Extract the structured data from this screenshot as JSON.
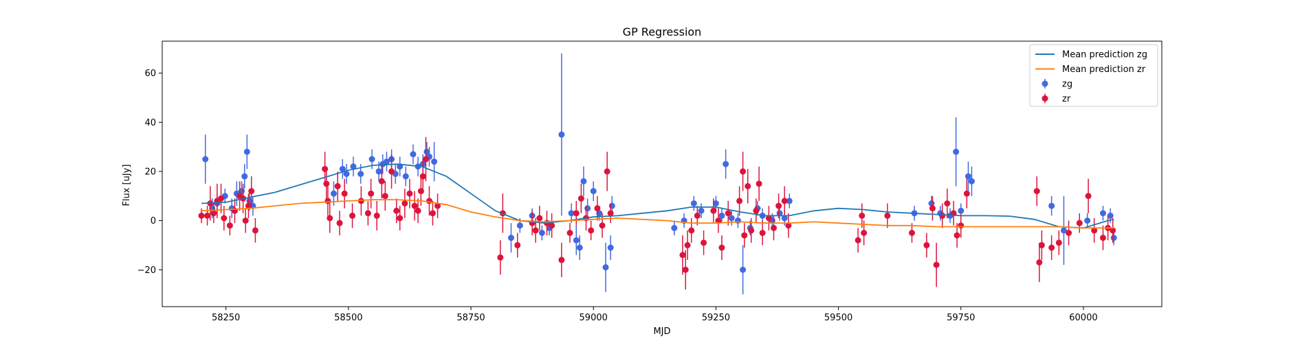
{
  "chart_data": {
    "type": "scatter",
    "title": "GP Regression",
    "xlabel": "MJD",
    "ylabel": "Flux [uJy]",
    "xlim": [
      58120,
      60160
    ],
    "ylim": [
      -35,
      73
    ],
    "xticks": [
      58250,
      58500,
      58750,
      59000,
      59250,
      59500,
      59750,
      60000
    ],
    "yticks": [
      -20,
      0,
      20,
      40,
      60
    ],
    "legend_position": "top-right",
    "series": [
      {
        "name": "zg",
        "kind": "errorbar",
        "color": "#4169e1",
        "points": [
          [
            58208,
            25,
            10
          ],
          [
            58222,
            5,
            4
          ],
          [
            58232,
            7,
            4
          ],
          [
            58248,
            10,
            3
          ],
          [
            58262,
            5,
            4
          ],
          [
            58272,
            11,
            5
          ],
          [
            58282,
            12,
            4
          ],
          [
            58288,
            18,
            5
          ],
          [
            58293,
            28,
            7
          ],
          [
            58298,
            8,
            4
          ],
          [
            58305,
            6,
            4
          ],
          [
            58470,
            11,
            5
          ],
          [
            58488,
            21,
            4
          ],
          [
            58496,
            19,
            4
          ],
          [
            58510,
            22,
            4
          ],
          [
            58525,
            19,
            4
          ],
          [
            58548,
            25,
            4
          ],
          [
            58562,
            20,
            4
          ],
          [
            58570,
            23,
            4
          ],
          [
            58578,
            24,
            4
          ],
          [
            58588,
            25,
            4
          ],
          [
            58596,
            19,
            4
          ],
          [
            58605,
            22,
            4
          ],
          [
            58617,
            18,
            4
          ],
          [
            58632,
            27,
            4
          ],
          [
            58642,
            22,
            4
          ],
          [
            58652,
            23,
            4
          ],
          [
            58660,
            28,
            4
          ],
          [
            58665,
            26,
            4
          ],
          [
            58675,
            24,
            8
          ],
          [
            58832,
            -7,
            6
          ],
          [
            58850,
            -2,
            3
          ],
          [
            58875,
            2,
            3
          ],
          [
            58895,
            -5,
            3
          ],
          [
            58910,
            -3,
            3
          ],
          [
            58935,
            35,
            33
          ],
          [
            58955,
            3,
            4
          ],
          [
            58965,
            -8,
            6
          ],
          [
            58972,
            -11,
            5
          ],
          [
            58980,
            16,
            6
          ],
          [
            58988,
            5,
            4
          ],
          [
            59000,
            12,
            4
          ],
          [
            59012,
            3,
            3
          ],
          [
            59025,
            -19,
            10
          ],
          [
            59035,
            -11,
            5
          ],
          [
            59038,
            6,
            4
          ],
          [
            59165,
            -3,
            3
          ],
          [
            59185,
            0,
            3
          ],
          [
            59205,
            7,
            3
          ],
          [
            59220,
            4,
            3
          ],
          [
            59250,
            7,
            3
          ],
          [
            59262,
            2,
            3
          ],
          [
            59270,
            23,
            6
          ],
          [
            59282,
            1,
            3
          ],
          [
            59295,
            0,
            3
          ],
          [
            59305,
            -20,
            10
          ],
          [
            59320,
            -3,
            3
          ],
          [
            59335,
            5,
            3
          ],
          [
            59345,
            2,
            3
          ],
          [
            59365,
            0,
            3
          ],
          [
            59380,
            3,
            3
          ],
          [
            59390,
            1,
            3
          ],
          [
            59400,
            8,
            3
          ],
          [
            59655,
            3,
            3
          ],
          [
            59690,
            7,
            3
          ],
          [
            59708,
            3,
            3
          ],
          [
            59728,
            2,
            3
          ],
          [
            59740,
            28,
            14
          ],
          [
            59750,
            4,
            3
          ],
          [
            59765,
            18,
            6
          ],
          [
            59772,
            16,
            6
          ],
          [
            59935,
            6,
            4
          ],
          [
            59960,
            -4,
            14
          ],
          [
            60008,
            0,
            3
          ],
          [
            60040,
            3,
            3
          ],
          [
            60055,
            2,
            3
          ],
          [
            60062,
            -7,
            3
          ]
        ]
      },
      {
        "name": "zr",
        "kind": "errorbar",
        "color": "#dc143c",
        "points": [
          [
            58200,
            2,
            3
          ],
          [
            58212,
            2,
            4
          ],
          [
            58218,
            7,
            7
          ],
          [
            58225,
            3,
            4
          ],
          [
            58232,
            8,
            7
          ],
          [
            58240,
            9,
            6
          ],
          [
            58246,
            1,
            5
          ],
          [
            58258,
            -2,
            4
          ],
          [
            58268,
            4,
            5
          ],
          [
            58278,
            10,
            6
          ],
          [
            58285,
            9,
            6
          ],
          [
            58290,
            0,
            5
          ],
          [
            58296,
            6,
            5
          ],
          [
            58302,
            12,
            6
          ],
          [
            58310,
            -4,
            5
          ],
          [
            58452,
            21,
            7
          ],
          [
            58455,
            15,
            6
          ],
          [
            58458,
            8,
            6
          ],
          [
            58462,
            1,
            6
          ],
          [
            58478,
            14,
            6
          ],
          [
            58482,
            -1,
            5
          ],
          [
            58492,
            11,
            6
          ],
          [
            58508,
            2,
            5
          ],
          [
            58526,
            8,
            6
          ],
          [
            58540,
            3,
            5
          ],
          [
            58546,
            11,
            6
          ],
          [
            58558,
            2,
            6
          ],
          [
            58568,
            16,
            7
          ],
          [
            58575,
            10,
            6
          ],
          [
            58588,
            20,
            7
          ],
          [
            58598,
            4,
            5
          ],
          [
            58605,
            1,
            5
          ],
          [
            58615,
            7,
            6
          ],
          [
            58625,
            11,
            6
          ],
          [
            58635,
            6,
            6
          ],
          [
            58642,
            4,
            5
          ],
          [
            58648,
            12,
            6
          ],
          [
            58652,
            18,
            7
          ],
          [
            58658,
            25,
            9
          ],
          [
            58665,
            8,
            6
          ],
          [
            58672,
            3,
            5
          ],
          [
            58682,
            6,
            5
          ],
          [
            58810,
            -15,
            7
          ],
          [
            58815,
            3,
            8
          ],
          [
            58845,
            -10,
            5
          ],
          [
            58875,
            -1,
            5
          ],
          [
            58882,
            -4,
            5
          ],
          [
            58890,
            1,
            5
          ],
          [
            58905,
            -1,
            5
          ],
          [
            58915,
            -2,
            5
          ],
          [
            58935,
            -16,
            7
          ],
          [
            58952,
            -5,
            4
          ],
          [
            58965,
            3,
            5
          ],
          [
            58975,
            9,
            6
          ],
          [
            58985,
            1,
            5
          ],
          [
            58995,
            -4,
            4
          ],
          [
            59008,
            5,
            5
          ],
          [
            59018,
            -2,
            5
          ],
          [
            59028,
            20,
            8
          ],
          [
            59035,
            3,
            4
          ],
          [
            59182,
            -14,
            8
          ],
          [
            59188,
            -20,
            8
          ],
          [
            59192,
            -10,
            6
          ],
          [
            59200,
            -4,
            5
          ],
          [
            59212,
            2,
            4
          ],
          [
            59225,
            -9,
            5
          ],
          [
            59245,
            4,
            5
          ],
          [
            59255,
            0,
            5
          ],
          [
            59262,
            -11,
            5
          ],
          [
            59275,
            3,
            5
          ],
          [
            59298,
            8,
            6
          ],
          [
            59305,
            20,
            8
          ],
          [
            59308,
            -6,
            5
          ],
          [
            59315,
            14,
            7
          ],
          [
            59322,
            -4,
            5
          ],
          [
            59332,
            4,
            5
          ],
          [
            59338,
            15,
            7
          ],
          [
            59345,
            -5,
            5
          ],
          [
            59358,
            1,
            5
          ],
          [
            59368,
            -3,
            5
          ],
          [
            59378,
            6,
            5
          ],
          [
            59390,
            8,
            6
          ],
          [
            59398,
            -2,
            5
          ],
          [
            59540,
            -8,
            5
          ],
          [
            59548,
            2,
            5
          ],
          [
            59552,
            -5,
            5
          ],
          [
            59600,
            2,
            5
          ],
          [
            59650,
            -5,
            4
          ],
          [
            59680,
            -10,
            5
          ],
          [
            59692,
            5,
            5
          ],
          [
            59700,
            -18,
            9
          ],
          [
            59712,
            2,
            5
          ],
          [
            59722,
            7,
            6
          ],
          [
            59735,
            3,
            5
          ],
          [
            59742,
            -6,
            5
          ],
          [
            59750,
            -2,
            5
          ],
          [
            59762,
            11,
            6
          ],
          [
            59905,
            12,
            6
          ],
          [
            59910,
            -17,
            8
          ],
          [
            59915,
            -10,
            6
          ],
          [
            59935,
            -11,
            5
          ],
          [
            59950,
            -9,
            5
          ],
          [
            59970,
            -5,
            5
          ],
          [
            59992,
            -1,
            4
          ],
          [
            60010,
            10,
            7
          ],
          [
            60022,
            -4,
            5
          ],
          [
            60040,
            -7,
            5
          ],
          [
            60050,
            -3,
            5
          ],
          [
            60060,
            -4,
            5
          ]
        ]
      },
      {
        "name": "Mean prediction zg",
        "kind": "line",
        "color": "#1f77b4",
        "x": [
          58200,
          58250,
          58300,
          58350,
          58400,
          58450,
          58500,
          58550,
          58600,
          58650,
          58700,
          58750,
          58800,
          58850,
          58900,
          58950,
          59000,
          59050,
          59100,
          59150,
          59200,
          59250,
          59300,
          59350,
          59400,
          59450,
          59500,
          59550,
          59600,
          59650,
          59700,
          59750,
          59800,
          59850,
          59900,
          59950,
          60000,
          60050,
          60062
        ],
        "y": [
          7,
          7.5,
          9.5,
          11.5,
          14.5,
          17.5,
          20.5,
          22.5,
          23,
          22,
          18,
          11,
          4,
          0,
          -1,
          0,
          1.5,
          2,
          3,
          4,
          5.5,
          5.5,
          3.5,
          2,
          2,
          4,
          5,
          4.5,
          3.5,
          3,
          2.5,
          2,
          2,
          1.8,
          0.5,
          -2.5,
          -3,
          0,
          0.5
        ]
      },
      {
        "name": "Mean prediction zr",
        "kind": "line",
        "color": "#ff7f0e",
        "x": [
          58200,
          58250,
          58300,
          58350,
          58400,
          58450,
          58500,
          58550,
          58600,
          58650,
          58700,
          58750,
          58800,
          58850,
          58900,
          58950,
          59000,
          59050,
          59100,
          59150,
          59200,
          59250,
          59300,
          59350,
          59400,
          59450,
          59500,
          59550,
          59600,
          59650,
          59700,
          59750,
          59800,
          59850,
          59900,
          59950,
          60000,
          60050,
          60062
        ],
        "y": [
          4,
          4.5,
          5,
          6,
          7,
          7.5,
          8,
          8.5,
          8.5,
          8,
          6.5,
          3.5,
          1.5,
          0,
          -0.5,
          0,
          0.5,
          1,
          0.5,
          0,
          -1,
          -1,
          -0.5,
          -1,
          -1,
          -0.5,
          -1,
          -1.5,
          -2,
          -2,
          -2.5,
          -2.5,
          -2.5,
          -2.5,
          -2.5,
          -2.5,
          -3,
          -3,
          -3
        ]
      }
    ],
    "legend": [
      {
        "label": "Mean prediction zg",
        "kind": "line",
        "color": "#1f77b4"
      },
      {
        "label": "Mean prediction zr",
        "kind": "line",
        "color": "#ff7f0e"
      },
      {
        "label": "zg",
        "kind": "errorbar",
        "color": "#4169e1"
      },
      {
        "label": "zr",
        "kind": "errorbar",
        "color": "#dc143c"
      }
    ],
    "grid": false
  }
}
